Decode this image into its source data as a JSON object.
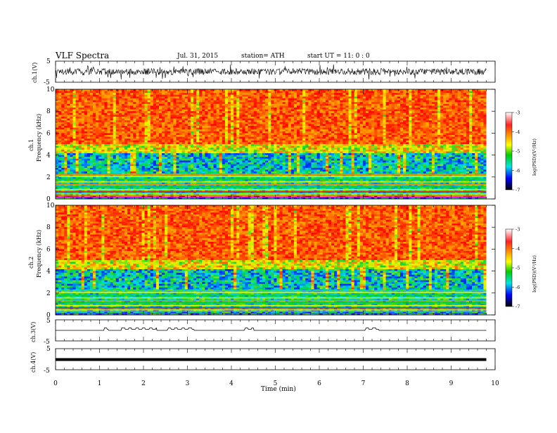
{
  "header": {
    "title": "VLF  Spectra",
    "date": "Jul.  31,  2015",
    "station": "station= ATH",
    "start": "start  UT  =    11: 0   : 0"
  },
  "chart_data": [
    {
      "type": "line",
      "name": "ch1",
      "ylabel": "ch.1(V)",
      "ylim": [
        -5,
        5
      ],
      "yticks": [
        "5",
        "-5"
      ],
      "description": "noisy waveform centered near 0 V, amplitude roughly +-2 V with spikes"
    },
    {
      "type": "heatmap",
      "name": "ch1-spectrogram",
      "ylabel": [
        "ch.1",
        "Frequency (kHz)"
      ],
      "ylim": [
        0,
        10
      ],
      "yticks": [
        "0",
        "2",
        "4",
        "6",
        "8",
        "10"
      ],
      "colorbar": {
        "label": "log(PSD)(V²/Hz)",
        "range": [
          -7,
          -3
        ],
        "ticks": [
          "-3",
          "-4",
          "-5",
          "-6",
          "-7"
        ],
        "colors": [
          "#ffffff",
          "#ff0000",
          "#ff8800",
          "#ffff00",
          "#00dd00",
          "#00ffff",
          "#0000ff",
          "#000000"
        ]
      },
      "bands": [
        {
          "from_khz": 4.5,
          "to_khz": 10,
          "level": "high (red/orange)"
        },
        {
          "from_khz": 2.5,
          "to_khz": 4.5,
          "level": "mid (green/cyan/blue)"
        },
        {
          "from_khz": 0,
          "to_khz": 2.5,
          "level": "horizontal narrowband lines"
        }
      ]
    },
    {
      "type": "heatmap",
      "name": "ch2-spectrogram",
      "ylabel": [
        "ch.2",
        "Frequency (kHz)"
      ],
      "ylim": [
        0,
        10
      ],
      "yticks": [
        "0",
        "2",
        "4",
        "6",
        "8",
        "10"
      ],
      "colorbar": {
        "label": "log(PSD)(V²/Hz)",
        "range": [
          -7,
          -3
        ],
        "ticks": [
          "-3",
          "-4",
          "-5",
          "-6",
          "-7"
        ]
      }
    },
    {
      "type": "line",
      "name": "ch3",
      "ylabel": "ch.3(V)",
      "ylim": [
        -5,
        5
      ],
      "yticks": [
        "5",
        "-5"
      ],
      "description": "nearly flat trace near 0 V with small positive bumps"
    },
    {
      "type": "line",
      "name": "ch4",
      "ylabel": "ch.4(V)",
      "ylim": [
        -5,
        5
      ],
      "yticks": [
        "5",
        "-5"
      ],
      "description": "thick flat trace at approximately -0.5 V"
    }
  ],
  "xaxis": {
    "label": "Time  (min)",
    "xlim": [
      0,
      10
    ],
    "ticks": [
      "0",
      "1",
      "2",
      "3",
      "4",
      "5",
      "6",
      "7",
      "8",
      "9",
      "10"
    ]
  },
  "colors": {
    "red": "#ff0000",
    "orange": "#ff9900",
    "yellow": "#ffff00",
    "green": "#00cc00",
    "cyan": "#00e5e5",
    "blue": "#0000ff",
    "black": "#000000"
  }
}
